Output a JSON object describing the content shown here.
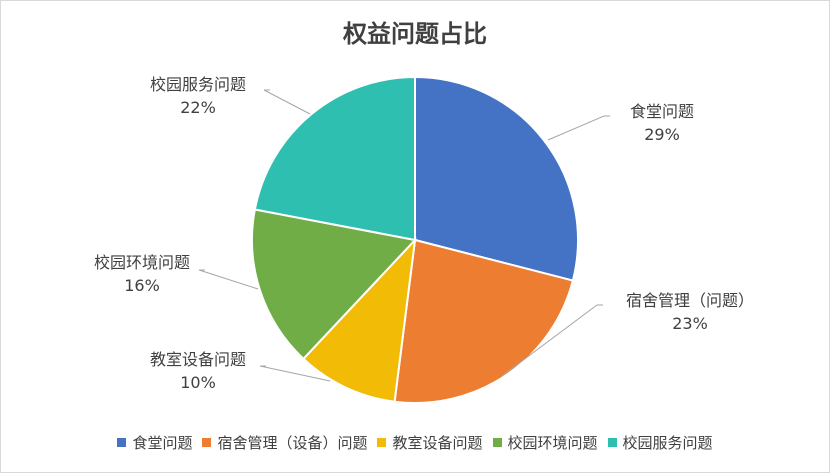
{
  "chart_data": {
    "type": "pie",
    "title": "权益问题占比",
    "slices": [
      {
        "label": "食堂问题",
        "value": 29,
        "pct_label": "29%",
        "color": "#4472C4"
      },
      {
        "label": "宿舍管理（问题）",
        "value": 23,
        "pct_label": "23%",
        "color": "#ED7D31"
      },
      {
        "label": "教室设备问题",
        "value": 10,
        "pct_label": "10%",
        "color": "#F2BC06"
      },
      {
        "label": "校园环境问题",
        "value": 16,
        "pct_label": "16%",
        "color": "#70AD47"
      },
      {
        "label": "校园服务问题",
        "value": 22,
        "pct_label": "22%",
        "color": "#2FBFB0"
      }
    ],
    "legend": {
      "position": "bottom",
      "entries": [
        {
          "label": "食堂问题",
          "color": "#4472C4"
        },
        {
          "label": "宿舍管理（设备）问题",
          "color": "#ED7D31"
        },
        {
          "label": "教室设备问题",
          "color": "#F2BC06"
        },
        {
          "label": "校园环境问题",
          "color": "#70AD47"
        },
        {
          "label": "校园服务问题",
          "color": "#2FBFB0"
        }
      ]
    }
  }
}
